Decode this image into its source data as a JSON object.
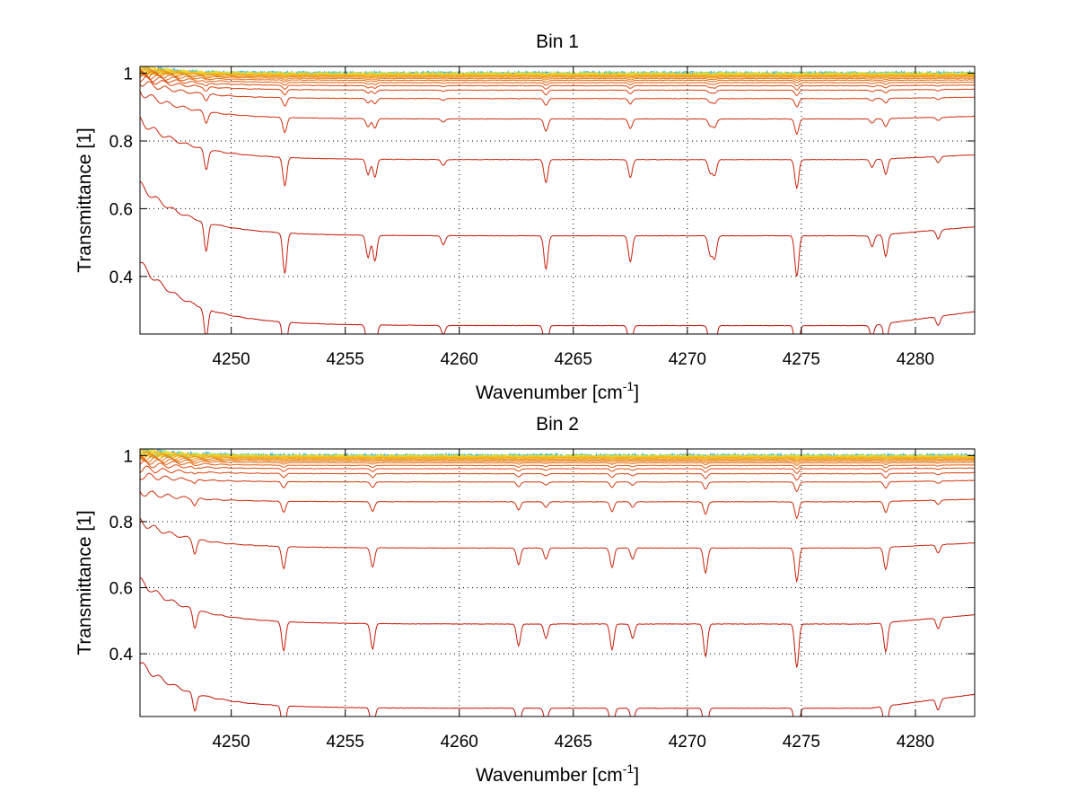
{
  "chart_data": [
    {
      "type": "line",
      "title": "Bin 1",
      "xlabel": "Wavenumber [cm",
      "xlabel_sup": "-1",
      "xlabel_end": "]",
      "ylabel": "Transmittance [1]",
      "xlim": [
        4246,
        4282.6
      ],
      "ylim": [
        0.23,
        1.02
      ],
      "grid": true,
      "xticks": [
        4250,
        4255,
        4260,
        4265,
        4270,
        4275,
        4280
      ],
      "xtick_labels": [
        "4250",
        "4255",
        "4260",
        "4265",
        "4270",
        "4275",
        "4280"
      ],
      "yticks": [
        0.4,
        0.6,
        0.8,
        1.0
      ],
      "ytick_labels": [
        "0.4",
        "0.6",
        "0.8",
        "1"
      ],
      "baselines": [
        0.255,
        0.52,
        0.745,
        0.865,
        0.925,
        0.95,
        0.963,
        0.972,
        0.979,
        0.984,
        0.988,
        0.991,
        0.993,
        0.995,
        0.996,
        0.997,
        0.998,
        0.9985,
        0.999,
        0.9995
      ],
      "start_values": [
        0.44,
        0.67,
        0.86,
        0.945,
        0.975,
        0.985,
        0.99,
        0.995,
        1.0,
        1.005,
        1.005,
        1.01,
        1.01,
        1.01,
        1.01,
        1.01,
        1.01,
        1.01,
        1.01,
        1.01
      ],
      "absorption_lines": [
        {
          "x": 4248.9,
          "depth": 0.04
        },
        {
          "x": 4252.35,
          "depth": 0.055
        },
        {
          "x": 4256.0,
          "depth": 0.03
        },
        {
          "x": 4256.3,
          "depth": 0.035
        },
        {
          "x": 4259.3,
          "depth": 0.012
        },
        {
          "x": 4263.8,
          "depth": 0.045
        },
        {
          "x": 4267.5,
          "depth": 0.035
        },
        {
          "x": 4271.0,
          "depth": 0.025
        },
        {
          "x": 4271.2,
          "depth": 0.03
        },
        {
          "x": 4274.8,
          "depth": 0.055
        },
        {
          "x": 4278.1,
          "depth": 0.015
        },
        {
          "x": 4278.7,
          "depth": 0.03
        },
        {
          "x": 4281.0,
          "depth": 0.012
        }
      ],
      "colors": [
        "#c0150a",
        "#c41c0b",
        "#c8250c",
        "#cd2e0d",
        "#d2380e",
        "#d7430f",
        "#dc5010",
        "#e05e12",
        "#e46d14",
        "#e87c16",
        "#ec8c18",
        "#f09c1a",
        "#f4ad1c",
        "#f6bd1e",
        "#f7cc22",
        "#f2da2c",
        "#d6e23e",
        "#9fdc6a",
        "#55cdb0",
        "#2aa8d8"
      ]
    },
    {
      "type": "line",
      "title": "Bin 2",
      "xlabel": "Wavenumber [cm",
      "xlabel_sup": "-1",
      "xlabel_end": "]",
      "ylabel": "Transmittance [1]",
      "xlim": [
        4246,
        4282.6
      ],
      "ylim": [
        0.21,
        1.02
      ],
      "grid": true,
      "xticks": [
        4250,
        4255,
        4260,
        4265,
        4270,
        4275,
        4280
      ],
      "xtick_labels": [
        "4250",
        "4255",
        "4260",
        "4265",
        "4270",
        "4275",
        "4280"
      ],
      "yticks": [
        0.4,
        0.6,
        0.8,
        1.0
      ],
      "ytick_labels": [
        "0.4",
        "0.6",
        "0.8",
        "1"
      ],
      "baselines": [
        0.235,
        0.49,
        0.72,
        0.86,
        0.92,
        0.945,
        0.96,
        0.97,
        0.978,
        0.983,
        0.987,
        0.99,
        0.993,
        0.995,
        0.996,
        0.997,
        0.998,
        0.9985,
        0.999,
        0.9995
      ],
      "start_values": [
        0.37,
        0.62,
        0.8,
        0.89,
        0.94,
        0.96,
        0.975,
        0.985,
        0.99,
        0.995,
        1.0,
        1.005,
        1.005,
        1.01,
        1.01,
        1.01,
        1.01,
        1.01,
        1.01,
        1.01
      ],
      "absorption_lines": [
        {
          "x": 4248.4,
          "depth": 0.025
        },
        {
          "x": 4252.3,
          "depth": 0.04
        },
        {
          "x": 4256.2,
          "depth": 0.035
        },
        {
          "x": 4262.6,
          "depth": 0.03
        },
        {
          "x": 4263.8,
          "depth": 0.02
        },
        {
          "x": 4266.7,
          "depth": 0.035
        },
        {
          "x": 4267.6,
          "depth": 0.02
        },
        {
          "x": 4270.8,
          "depth": 0.045
        },
        {
          "x": 4274.8,
          "depth": 0.06
        },
        {
          "x": 4278.7,
          "depth": 0.04
        },
        {
          "x": 4281.0,
          "depth": 0.015
        }
      ],
      "colors": [
        "#c0150a",
        "#c41c0b",
        "#c8250c",
        "#cd2e0d",
        "#d2380e",
        "#d7430f",
        "#dc5010",
        "#e05e12",
        "#e46d14",
        "#e87c16",
        "#ec8c18",
        "#f09c1a",
        "#f4ad1c",
        "#f6bd1e",
        "#f7cc22",
        "#f2da2c",
        "#d6e23e",
        "#9fdc6a",
        "#55cdb0",
        "#2aa8d8"
      ]
    }
  ]
}
